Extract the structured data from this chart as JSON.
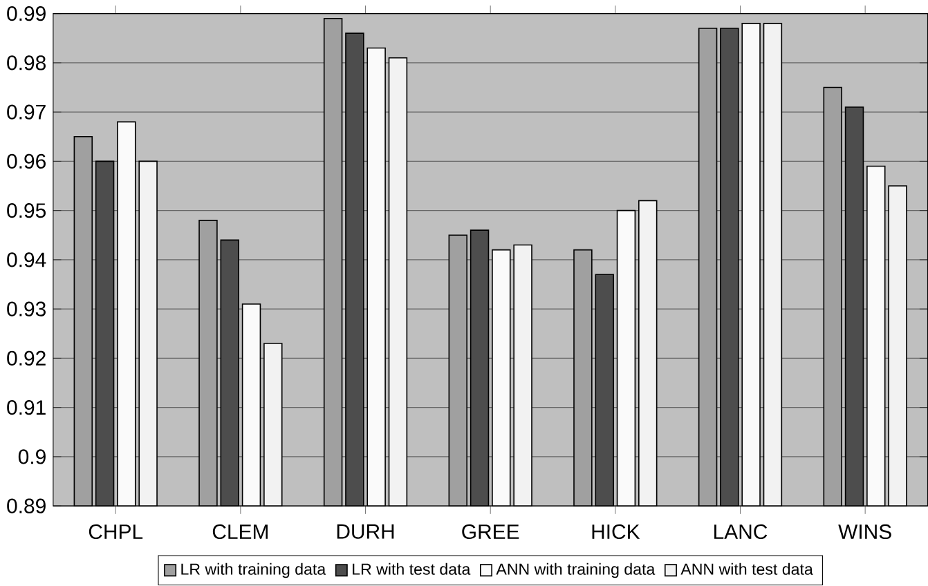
{
  "chart_data": {
    "type": "bar",
    "categories": [
      "CHPL",
      "CLEM",
      "DURH",
      "GREE",
      "HICK",
      "LANC",
      "WINS"
    ],
    "series": [
      {
        "name": "LR with training data",
        "color": "#a0a0a0",
        "values": [
          0.965,
          0.948,
          0.989,
          0.945,
          0.942,
          0.987,
          0.975
        ]
      },
      {
        "name": "LR with test data",
        "color": "#4d4d4d",
        "values": [
          0.96,
          0.944,
          0.986,
          0.946,
          0.937,
          0.987,
          0.971
        ]
      },
      {
        "name": "ANN with training data",
        "color": "#fafafa",
        "values": [
          0.968,
          0.931,
          0.983,
          0.942,
          0.95,
          0.988,
          0.959
        ]
      },
      {
        "name": "ANN with test data",
        "color": "#f2f2f2",
        "values": [
          0.96,
          0.923,
          0.981,
          0.943,
          0.952,
          0.988,
          0.955
        ]
      }
    ],
    "ylim": [
      0.89,
      0.99
    ],
    "yticks": [
      0.89,
      0.9,
      0.91,
      0.92,
      0.93,
      0.94,
      0.95,
      0.96,
      0.97,
      0.98,
      0.99
    ],
    "grid": "y",
    "legend": "bottom"
  }
}
